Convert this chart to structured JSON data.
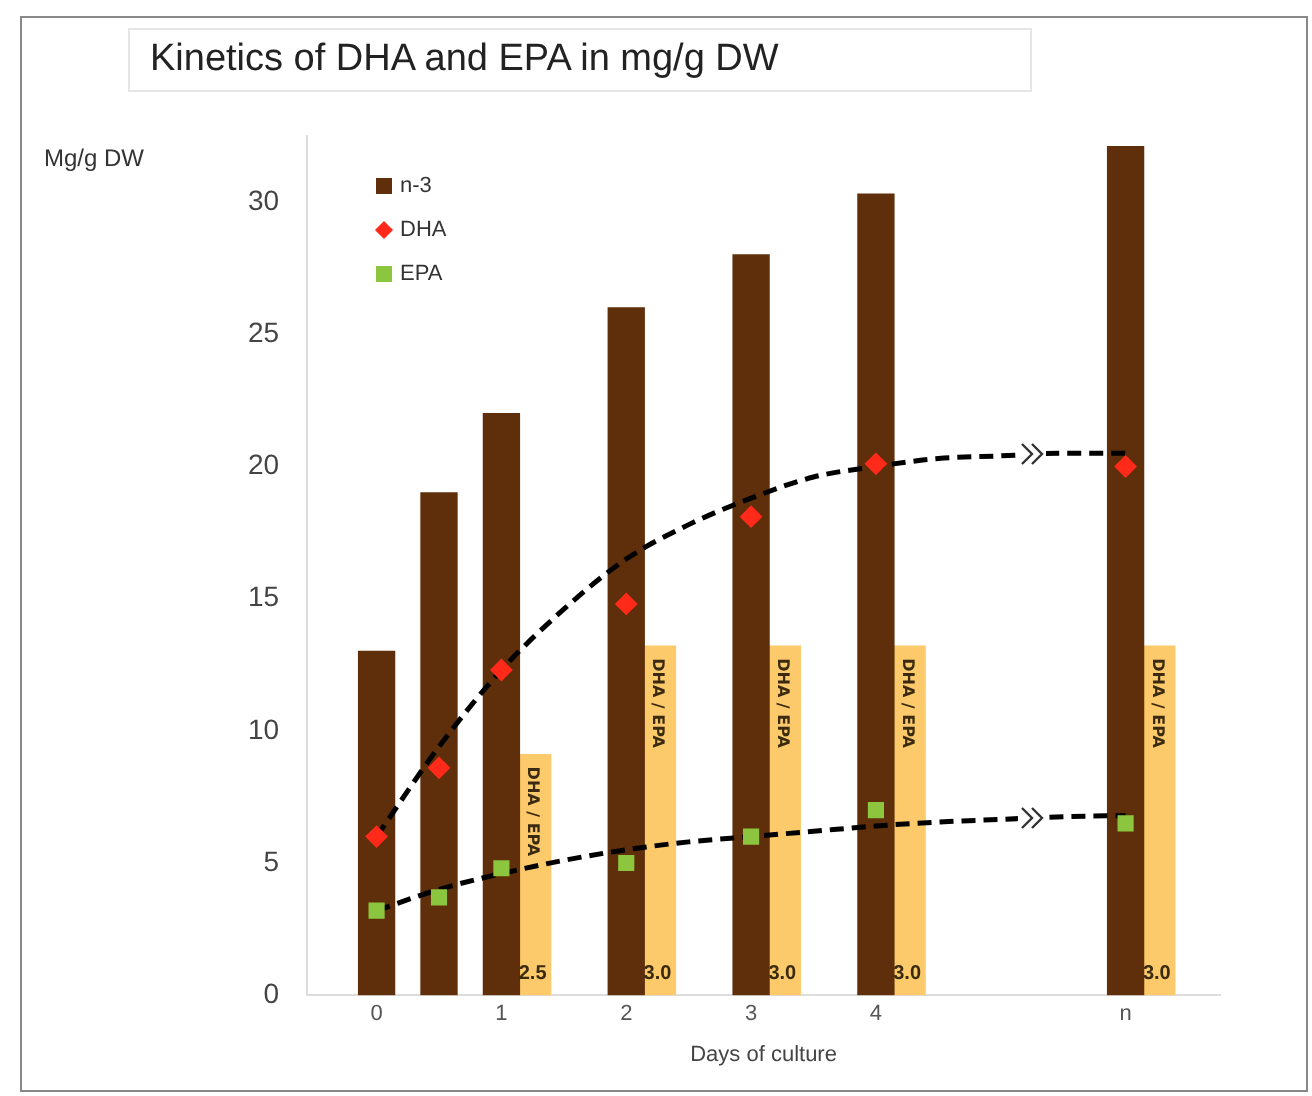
{
  "chart_data": {
    "type": "bar",
    "title": "Kinetics of DHA and EPA in mg/g DW",
    "ylabel": "Mg/g DW",
    "xlabel": "Days of culture",
    "categories": [
      "0",
      null,
      "1",
      null,
      "2",
      null,
      "3",
      null,
      "4",
      null,
      null,
      null,
      "n"
    ],
    "annotations": [
      "2.5",
      "3.0",
      "3.0",
      "3.0",
      "3.0"
    ],
    "ylim": [
      0,
      32.5
    ],
    "yticks": [
      0,
      5,
      10,
      15,
      20,
      25,
      30
    ],
    "grid": false,
    "legend": "top left",
    "series": [
      {
        "name": "n-3",
        "color": "#5e2f0a",
        "marker": "square",
        "values": [
          13,
          19,
          22,
          null,
          26,
          null,
          28,
          null,
          30.3,
          null,
          null,
          null,
          32.1
        ]
      },
      {
        "name": "DHA / EPA",
        "color": "#fcc96b",
        "values": [
          null,
          null,
          9.1,
          null,
          13.2,
          null,
          13.2,
          null,
          13.2,
          null,
          null,
          null,
          13.2
        ]
      },
      {
        "name": "DHA",
        "type": "scatter",
        "color": "#ff2a1a",
        "marker": "diamond",
        "values": [
          6.0,
          8.6,
          12.3,
          null,
          14.8,
          null,
          18.1,
          null,
          20.1,
          null,
          null,
          null,
          20.0
        ]
      },
      {
        "name": "EPA",
        "type": "scatter",
        "color": "#8cc63f",
        "marker": "square",
        "values": [
          3.2,
          3.7,
          4.8,
          null,
          5.0,
          null,
          6.0,
          null,
          7.0,
          null,
          null,
          null,
          6.5
        ]
      },
      {
        "type": "line",
        "color": "#000000",
        "line_style": "dashed",
        "marker": "none",
        "values": [
          6.0,
          9.4,
          12.3,
          14.6,
          16.5,
          17.8,
          18.8,
          19.6,
          20.0,
          20.3,
          20.4,
          20.5,
          20.5
        ]
      },
      {
        "type": "line",
        "color": "#000000",
        "line_style": "dashed",
        "marker": "none",
        "values": [
          3.2,
          4.0,
          4.6,
          5.1,
          5.5,
          5.8,
          6.0,
          6.2,
          6.4,
          6.55,
          6.65,
          6.75,
          6.8
        ]
      }
    ]
  }
}
